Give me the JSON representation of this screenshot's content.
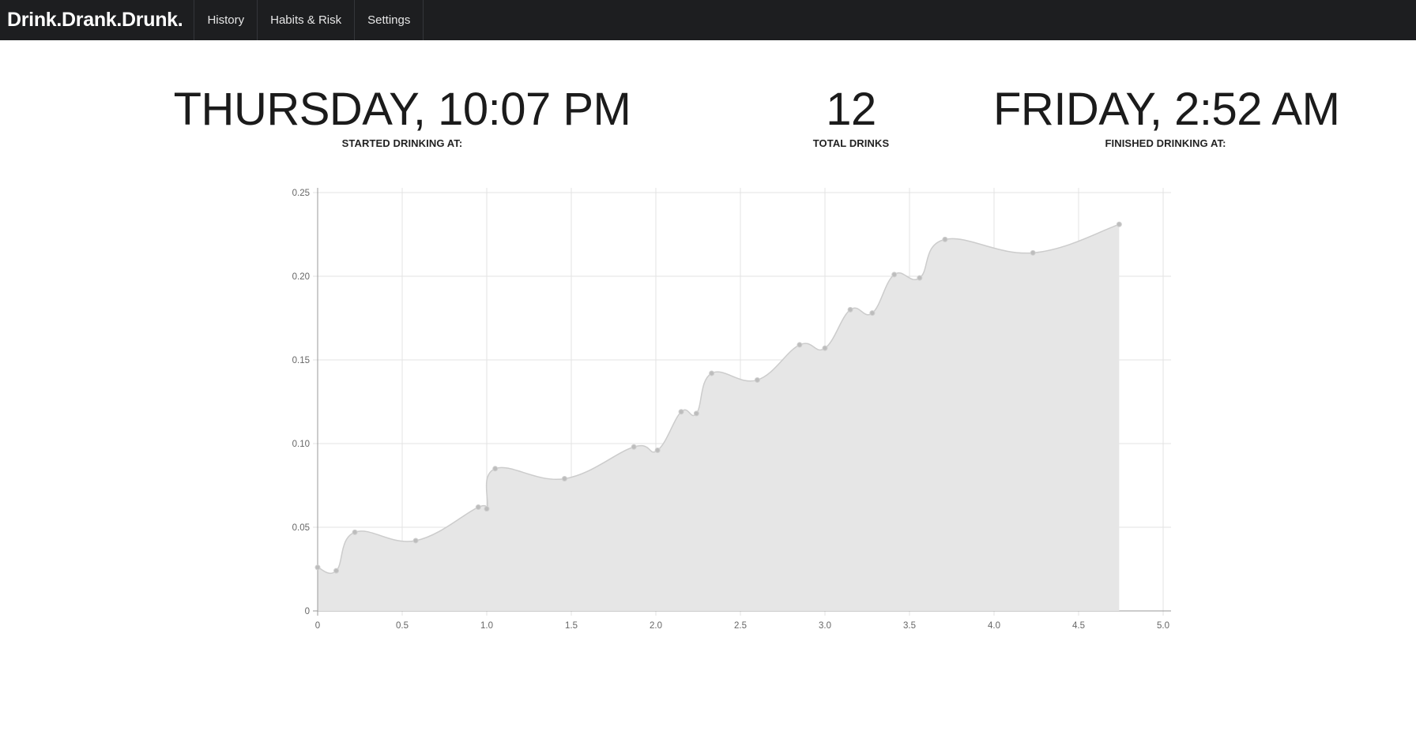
{
  "navbar": {
    "brand": "Drink.Drank.Drunk.",
    "items": [
      {
        "label": "History"
      },
      {
        "label": "Habits & Risk"
      },
      {
        "label": "Settings"
      }
    ]
  },
  "stats": {
    "started": {
      "value": "THURSDAY, 10:07 PM",
      "label": "STARTED DRINKING AT:"
    },
    "total": {
      "value": "12",
      "label": "TOTAL DRINKS"
    },
    "finished": {
      "value": "FRIDAY, 2:52 AM",
      "label": "FINISHED DRINKING AT:"
    }
  },
  "chart_data": {
    "type": "area",
    "title": "",
    "xlabel": "",
    "ylabel": "",
    "xlim": [
      0,
      5.0
    ],
    "ylim": [
      0,
      0.25
    ],
    "x_ticks": [
      "0",
      "0.5",
      "1.0",
      "1.5",
      "2.0",
      "2.5",
      "3.0",
      "3.5",
      "4.0",
      "4.5",
      "5.0"
    ],
    "y_ticks": [
      "0",
      "0.05",
      "0.10",
      "0.15",
      "0.20",
      "0.25"
    ],
    "grid": true,
    "colors": {
      "fill": "#e6e6e6",
      "line": "#cccccc",
      "point": "#bdbdbd"
    },
    "series": [
      {
        "points": [
          {
            "x": 0.0,
            "y": 0.026
          },
          {
            "x": 0.11,
            "y": 0.024
          },
          {
            "x": 0.22,
            "y": 0.047
          },
          {
            "x": 0.58,
            "y": 0.042
          },
          {
            "x": 0.95,
            "y": 0.062
          },
          {
            "x": 1.0,
            "y": 0.061
          },
          {
            "x": 1.05,
            "y": 0.085
          },
          {
            "x": 1.46,
            "y": 0.079
          },
          {
            "x": 1.87,
            "y": 0.098
          },
          {
            "x": 2.01,
            "y": 0.096
          },
          {
            "x": 2.15,
            "y": 0.119
          },
          {
            "x": 2.24,
            "y": 0.118
          },
          {
            "x": 2.33,
            "y": 0.142
          },
          {
            "x": 2.6,
            "y": 0.138
          },
          {
            "x": 2.85,
            "y": 0.159
          },
          {
            "x": 3.0,
            "y": 0.157
          },
          {
            "x": 3.15,
            "y": 0.18
          },
          {
            "x": 3.28,
            "y": 0.178
          },
          {
            "x": 3.41,
            "y": 0.201
          },
          {
            "x": 3.56,
            "y": 0.199
          },
          {
            "x": 3.71,
            "y": 0.222
          },
          {
            "x": 4.23,
            "y": 0.214
          },
          {
            "x": 4.74,
            "y": 0.231
          }
        ]
      }
    ]
  }
}
